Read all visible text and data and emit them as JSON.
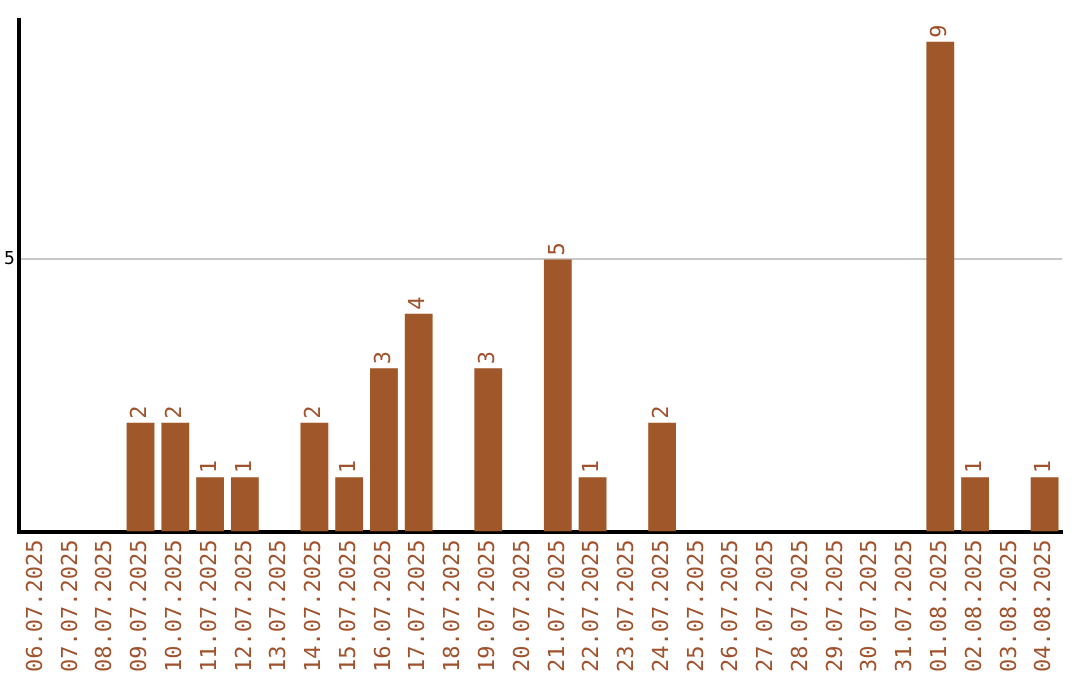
{
  "chart_data": {
    "type": "bar",
    "categories": [
      "06.07.2025",
      "07.07.2025",
      "08.07.2025",
      "09.07.2025",
      "10.07.2025",
      "11.07.2025",
      "12.07.2025",
      "13.07.2025",
      "14.07.2025",
      "15.07.2025",
      "16.07.2025",
      "17.07.2025",
      "18.07.2025",
      "19.07.2025",
      "20.07.2025",
      "21.07.2025",
      "22.07.2025",
      "23.07.2025",
      "24.07.2025",
      "25.07.2025",
      "26.07.2025",
      "27.07.2025",
      "28.07.2025",
      "29.07.2025",
      "30.07.2025",
      "31.07.2025",
      "01.08.2025",
      "02.08.2025",
      "03.08.2025",
      "04.08.2025"
    ],
    "values": [
      0,
      0,
      0,
      2,
      2,
      1,
      1,
      0,
      2,
      1,
      3,
      4,
      0,
      3,
      0,
      5,
      1,
      0,
      2,
      0,
      0,
      0,
      0,
      0,
      0,
      0,
      9,
      1,
      0,
      1
    ],
    "value_labels": [
      null,
      null,
      null,
      "2",
      "2",
      "1",
      "1",
      null,
      "2",
      "1",
      "3",
      "4",
      null,
      "3",
      null,
      "5",
      "1",
      null,
      "2",
      null,
      null,
      null,
      null,
      null,
      null,
      null,
      "9",
      "1",
      null,
      "1"
    ],
    "color": "#a0572a",
    "ylim": [
      0,
      9.4
    ],
    "yticks": [
      5
    ],
    "grid": "y",
    "legend": false
  }
}
